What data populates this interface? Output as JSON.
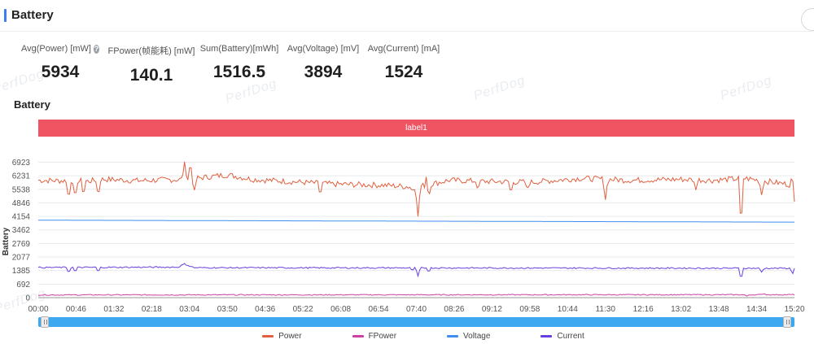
{
  "header": {
    "title": "Battery"
  },
  "stats": [
    {
      "label": "Avg(Power) [mW]",
      "value": "5934",
      "help": true
    },
    {
      "label": "FPower(帧能耗) [mW]",
      "value": "140.1",
      "help": false
    },
    {
      "label": "Sum(Battery)[mWh]",
      "value": "1516.5",
      "help": false
    },
    {
      "label": "Avg(Voltage) [mV]",
      "value": "3894",
      "help": false
    },
    {
      "label": "Avg(Current) [mA]",
      "value": "1524",
      "help": false
    }
  ],
  "watermark": "PerfDog",
  "chart_title": "Battery",
  "chart_data": {
    "type": "line",
    "title": "Battery",
    "band_label": "label1",
    "ylabel": "Battery",
    "yticks": [
      0,
      692,
      1385,
      2077,
      2769,
      3462,
      4154,
      4846,
      5538,
      6231,
      6923
    ],
    "ylim": [
      0,
      7400
    ],
    "xticks": [
      "00:00",
      "00:46",
      "01:32",
      "02:18",
      "03:04",
      "03:50",
      "04:36",
      "05:22",
      "06:08",
      "06:54",
      "07:40",
      "08:26",
      "09:12",
      "09:58",
      "10:44",
      "11:30",
      "12:16",
      "13:02",
      "13:48",
      "14:34",
      "15:20"
    ],
    "xlim_seconds": [
      0,
      920
    ],
    "grid": true,
    "legend_position": "bottom",
    "series": [
      {
        "name": "Power",
        "color": "#e0603f",
        "baseline": 6000,
        "noise": 150,
        "points": [
          [
            0,
            6000
          ],
          [
            60,
            5950
          ],
          [
            80,
            6050
          ],
          [
            120,
            5980
          ],
          [
            180,
            6050
          ],
          [
            230,
            6280
          ],
          [
            260,
            6050
          ],
          [
            300,
            5950
          ],
          [
            360,
            5800
          ],
          [
            420,
            5750
          ],
          [
            460,
            5650
          ],
          [
            500,
            6000
          ],
          [
            540,
            5950
          ],
          [
            600,
            5900
          ],
          [
            660,
            6100
          ],
          [
            720,
            6000
          ],
          [
            780,
            6050
          ],
          [
            820,
            6000
          ],
          [
            860,
            6100
          ],
          [
            920,
            5750
          ]
        ],
        "spikes": [
          [
            37,
            4950
          ],
          [
            45,
            5000
          ],
          [
            55,
            5200
          ],
          [
            73,
            5150
          ],
          [
            178,
            6950
          ],
          [
            185,
            6920
          ],
          [
            190,
            5500
          ],
          [
            343,
            5200
          ],
          [
            455,
            5450
          ],
          [
            462,
            4150
          ],
          [
            473,
            6400
          ],
          [
            475,
            5100
          ],
          [
            535,
            5500
          ],
          [
            575,
            5300
          ],
          [
            595,
            5500
          ],
          [
            690,
            5000
          ],
          [
            800,
            5500
          ],
          [
            855,
            3400
          ],
          [
            880,
            5250
          ],
          [
            918,
            6500
          ],
          [
            920,
            4900
          ]
        ]
      },
      {
        "name": "FPower",
        "color": "#cc3fa6",
        "baseline": 140,
        "noise": 25,
        "points": [
          [
            0,
            140
          ],
          [
            920,
            150
          ]
        ],
        "spikes": [
          [
            862,
            80
          ],
          [
            883,
            210
          ]
        ]
      },
      {
        "name": "Voltage",
        "color": "#3d8ef0",
        "baseline": 3950,
        "noise": 0,
        "points": [
          [
            0,
            3960
          ],
          [
            920,
            3860
          ]
        ],
        "spikes": []
      },
      {
        "name": "Current",
        "color": "#6a3fe0",
        "baseline": 1530,
        "noise": 35,
        "points": [
          [
            0,
            1540
          ],
          [
            170,
            1560
          ],
          [
            178,
            1720
          ],
          [
            190,
            1530
          ],
          [
            460,
            1520
          ],
          [
            920,
            1500
          ]
        ],
        "spikes": [
          [
            37,
            1250
          ],
          [
            45,
            1300
          ],
          [
            73,
            1300
          ],
          [
            455,
            1380
          ],
          [
            462,
            1100
          ],
          [
            475,
            1300
          ],
          [
            855,
            900
          ],
          [
            880,
            1300
          ],
          [
            918,
            1100
          ],
          [
            920,
            1500
          ]
        ]
      }
    ]
  }
}
